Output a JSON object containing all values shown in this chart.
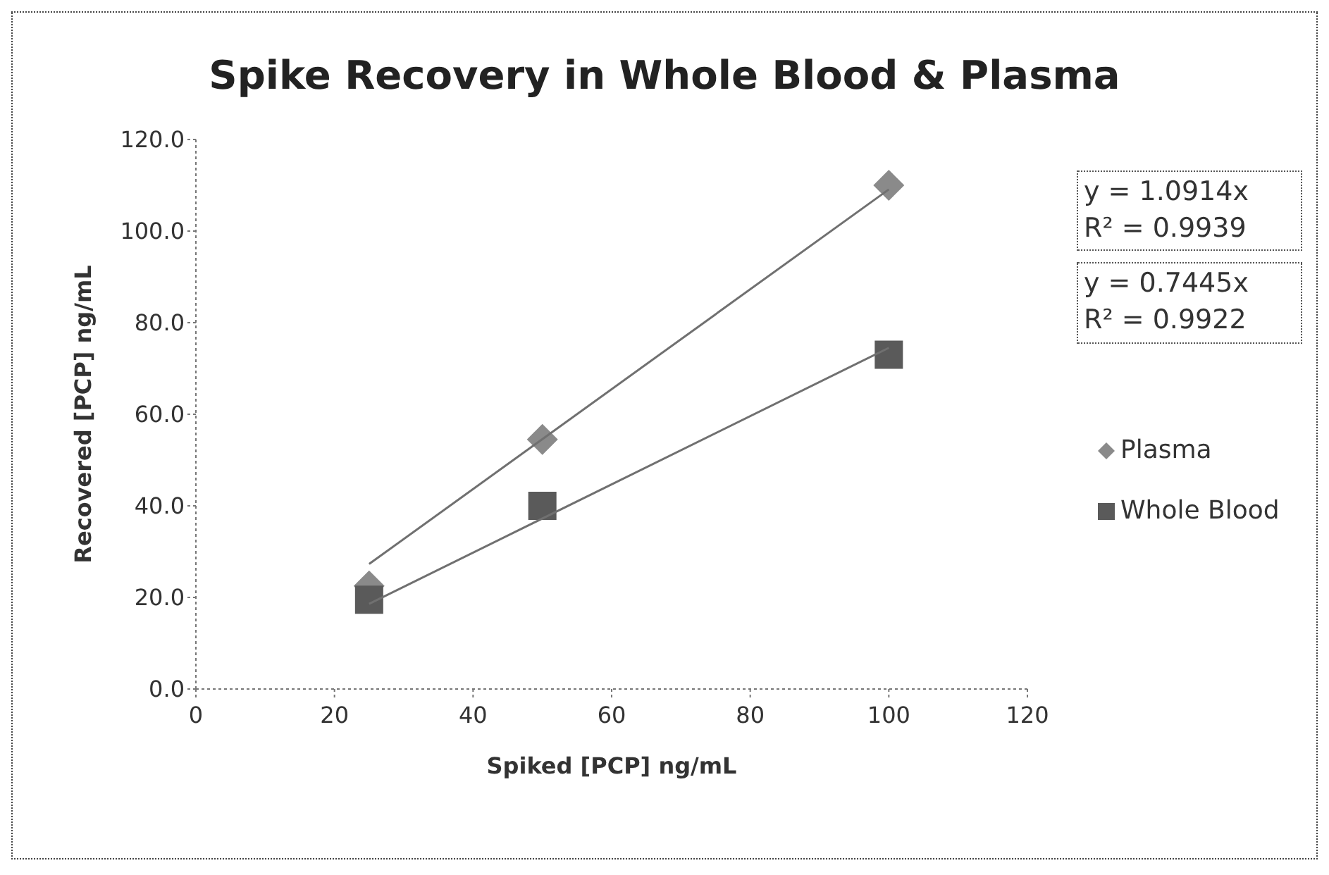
{
  "chart_data": {
    "type": "scatter",
    "title": "Spike Recovery in Whole Blood & Plasma",
    "xlabel": "Spiked [PCP] ng/mL",
    "ylabel": "Recovered [PCP] ng/mL",
    "xlim": [
      0,
      120
    ],
    "xticks": [
      0,
      20,
      40,
      60,
      80,
      100,
      120
    ],
    "ylim": [
      0,
      120
    ],
    "yticks": [
      {
        "value": 0,
        "label": "0.0"
      },
      {
        "value": 20,
        "label": "20.0"
      },
      {
        "value": 40,
        "label": "40.0"
      },
      {
        "value": 60,
        "label": "60.0"
      },
      {
        "value": 80,
        "label": "80.0"
      },
      {
        "value": 100,
        "label": "100.0"
      },
      {
        "value": 120,
        "label": "120.0"
      }
    ],
    "grid": false,
    "legend": "right",
    "annotations": [
      "y = 1.0914x\nR² = 0.9939",
      "y = 0.7445x\nR² = 0.9922"
    ],
    "series": [
      {
        "name": "Plasma",
        "marker": "diamond",
        "color": "#8a8a8a",
        "x": [
          25,
          50,
          100
        ],
        "values": [
          22.5,
          54.5,
          110
        ]
      },
      {
        "name": "Whole Blood",
        "marker": "square",
        "color": "#5a5a5a",
        "x": [
          25,
          50,
          100
        ],
        "values": [
          19.5,
          40,
          73
        ]
      },
      {
        "type": "line",
        "marker": "none",
        "color": "#707070",
        "x": [
          25,
          100
        ],
        "values": [
          27.3,
          109.1
        ]
      },
      {
        "type": "line",
        "marker": "none",
        "color": "#707070",
        "x": [
          25,
          100
        ],
        "values": [
          18.6,
          74.5
        ]
      }
    ]
  }
}
